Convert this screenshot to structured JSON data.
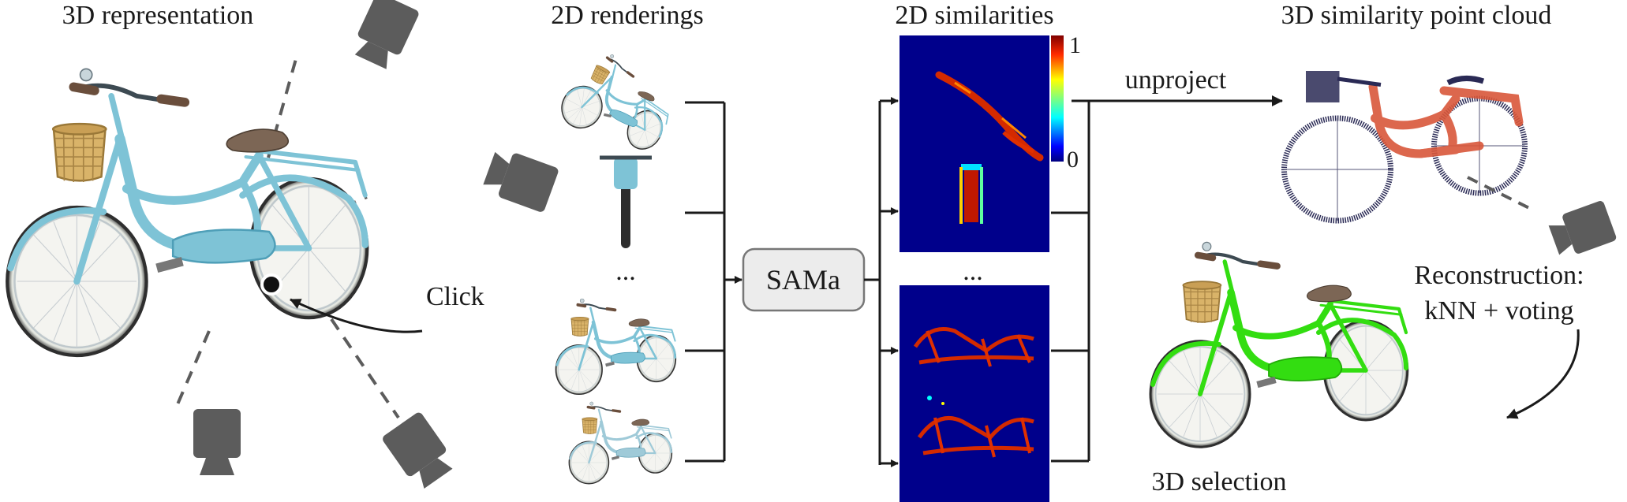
{
  "titles": {
    "representation": "3D representation",
    "renderings": "2D renderings",
    "similarities": "2D similarities",
    "point_cloud": "3D similarity point cloud"
  },
  "labels": {
    "click": "Click",
    "sama": "SAMa",
    "unproject": "unproject",
    "reconstruction_line1": "Reconstruction:",
    "reconstruction_line2": "kNN + voting",
    "selection": "3D selection",
    "ellipsis_renderings": "...",
    "ellipsis_similarities": "..."
  },
  "colorbar": {
    "max_label": "1",
    "min_label": "0",
    "colors": [
      "#00007f",
      "#0000ff",
      "#00ffff",
      "#7fff7f",
      "#ffff00",
      "#ff7f00",
      "#ff0000",
      "#7f0000"
    ]
  },
  "colors": {
    "bike_blue": "#7ec3d6",
    "bike_frame_dark": "#4f9fb8",
    "similarity_bg": "#00008b",
    "similarity_hot": "#d42a00",
    "selection_green": "#33dd11",
    "camera_gray": "#5c5c5c",
    "sama_box": "#ececec",
    "point_cloud_red": "#d9573a",
    "point_cloud_dark": "#2a2a55"
  },
  "icons": [
    "camera-icon",
    "bicycle-icon",
    "click-point-icon",
    "basket-icon"
  ]
}
